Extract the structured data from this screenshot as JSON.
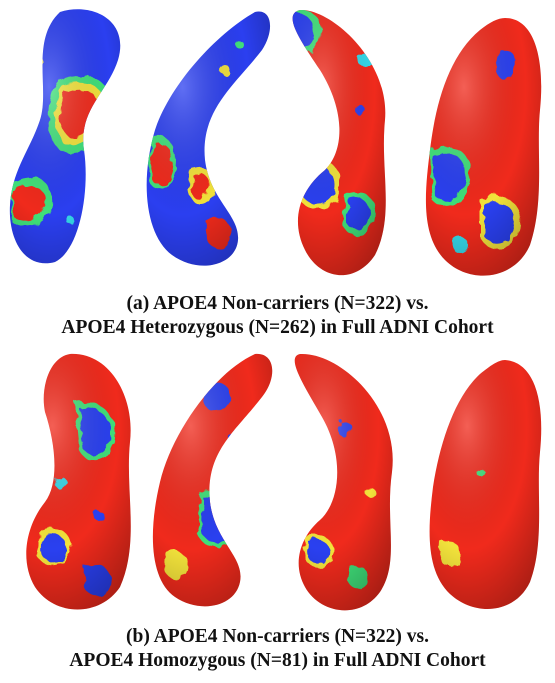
{
  "panels": [
    {
      "caption_line1": "(a) APOE4 Non-carriers (N=322) vs.",
      "caption_line2": "APOE4 Heterozygous (N=262) in Full ADNI Cohort"
    },
    {
      "caption_line1": "(b) APOE4 Non-carriers (N=322) vs.",
      "caption_line2": "APOE4 Homozygous (N=81) in Full ADNI Cohort"
    }
  ],
  "colors": {
    "background_surface": "#2b3ff0",
    "significant": "#f02a1c",
    "edge_green": "#3fe07a",
    "edge_yellow": "#f2e23a",
    "edge_cyan": "#35d8e8",
    "shading": "#000000"
  }
}
